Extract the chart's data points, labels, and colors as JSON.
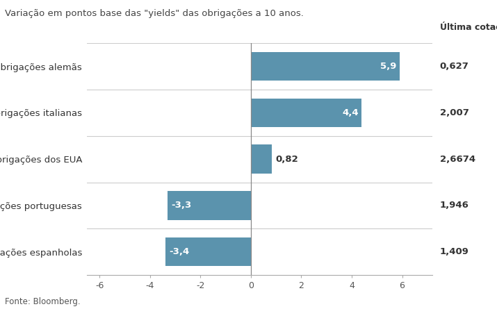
{
  "title": "Variação em pontos base das \"yields\" das obrigações a 10 anos.",
  "footer": "Fonte: Bloomberg.",
  "ultima_cotacao_label": "Última cotação",
  "categories": [
    "Obrigações espanholas",
    "Obrigações portuguesas",
    "Obrigações dos EUA",
    "Obrigações italianas",
    "Obrigações alemãs"
  ],
  "values": [
    -3.4,
    -3.3,
    0.82,
    4.4,
    5.9
  ],
  "bar_labels": [
    "-3,4",
    "-3,3",
    "0,82",
    "4,4",
    "5,9"
  ],
  "ultima_cotacao": [
    "1,409",
    "1,946",
    "2,6674",
    "2,007",
    "0,627"
  ],
  "bar_color": "#5b93ad",
  "xlim": [
    -6.5,
    7.2
  ],
  "xticks": [
    -6,
    -4,
    -2,
    0,
    2,
    4,
    6
  ],
  "bg_color": "#ffffff",
  "grid_color": "#cccccc",
  "title_fontsize": 9.5,
  "label_fontsize": 9.5,
  "tick_fontsize": 9.0,
  "annotation_fontsize": 9.5,
  "ultima_header_fontsize": 9.0,
  "footer_fontsize": 8.5
}
